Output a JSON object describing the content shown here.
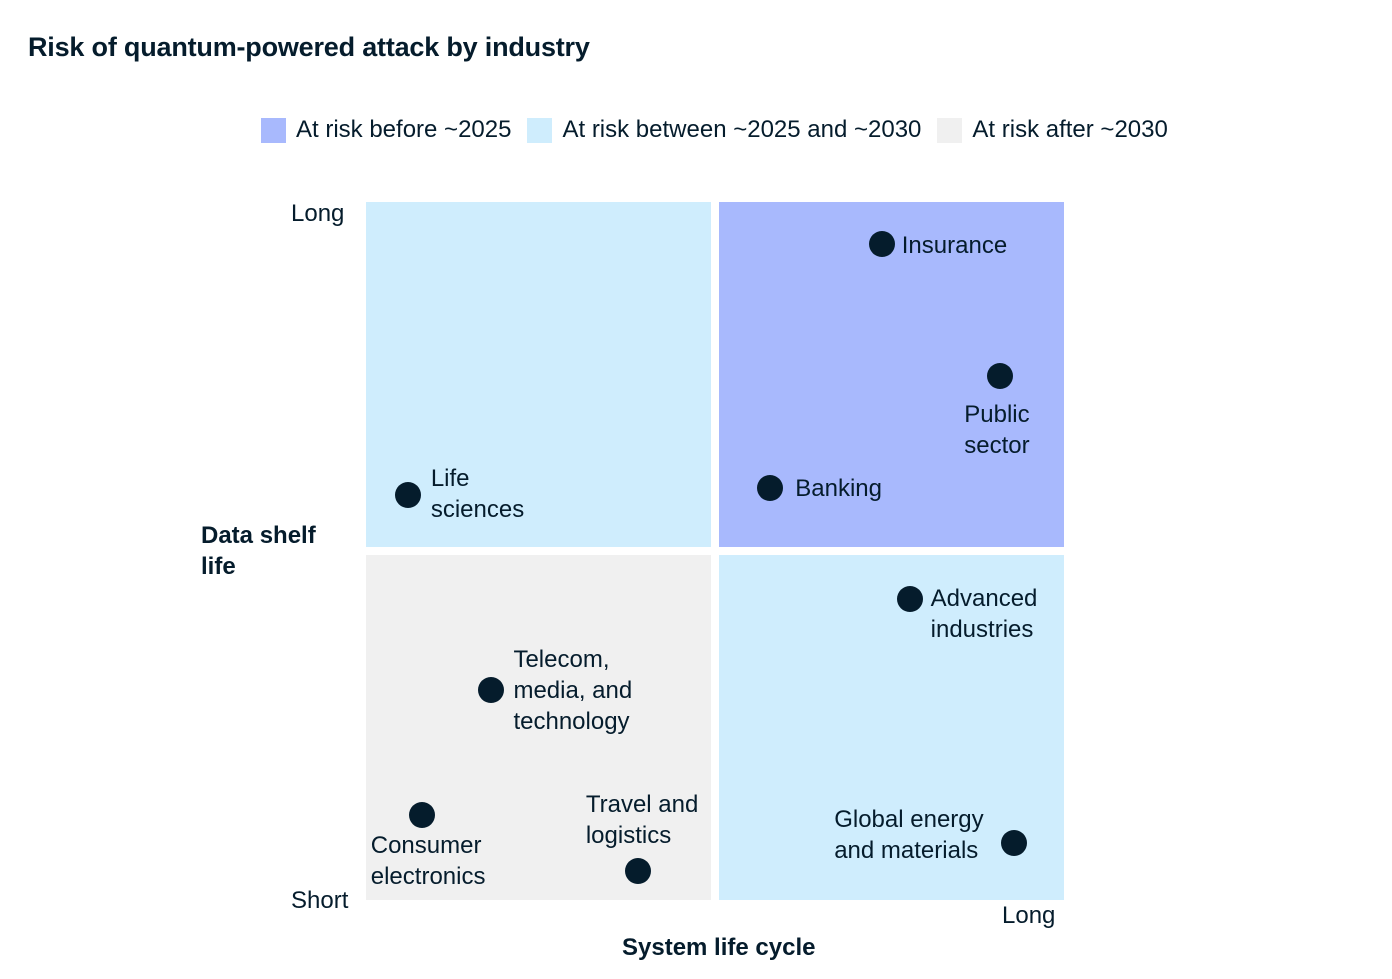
{
  "chart_data": {
    "type": "scatter",
    "title": "Risk of quantum-powered attack by industry",
    "xlabel": "System life cycle",
    "ylabel": "Data shelf life",
    "x_ticks": [
      "",
      "Long"
    ],
    "y_ticks": [
      "Short",
      "Long"
    ],
    "xlim": [
      0,
      10
    ],
    "ylim": [
      0,
      10
    ],
    "grid": false,
    "legend_position": "top",
    "legend": [
      {
        "label": "At risk before ~2025",
        "color": "#a8b9fd"
      },
      {
        "label": "At risk between ~2025 and ~2030",
        "color": "#cfedfd"
      },
      {
        "label": "At risk after ~2030",
        "color": "#f0f0f0"
      }
    ],
    "quadrants": {
      "top_left": "#cfedfd",
      "top_right": "#a8b9fd",
      "bottom_left": "#f0f0f0",
      "bottom_right": "#cfedfd"
    },
    "point_color": "#051c2c",
    "points": [
      {
        "label": [
          "Insurance"
        ],
        "x": 7.4,
        "y": 9.4
      },
      {
        "label": [
          "Public",
          "sector"
        ],
        "x": 9.1,
        "y": 7.5
      },
      {
        "label": [
          "Banking"
        ],
        "x": 5.8,
        "y": 5.9
      },
      {
        "label": [
          "Life",
          "sciences"
        ],
        "x": 0.6,
        "y": 5.8
      },
      {
        "label": [
          "Advanced",
          "industries"
        ],
        "x": 7.8,
        "y": 4.3
      },
      {
        "label": [
          "Telecom,",
          "media, and",
          "technology"
        ],
        "x": 1.8,
        "y": 3.0
      },
      {
        "label": [
          "Consumer",
          "electronics"
        ],
        "x": 0.8,
        "y": 1.2
      },
      {
        "label": [
          "Travel and",
          "logistics"
        ],
        "x": 3.9,
        "y": 0.4
      },
      {
        "label": [
          "Global energy",
          "and materials"
        ],
        "x": 9.3,
        "y": 0.8
      }
    ]
  }
}
